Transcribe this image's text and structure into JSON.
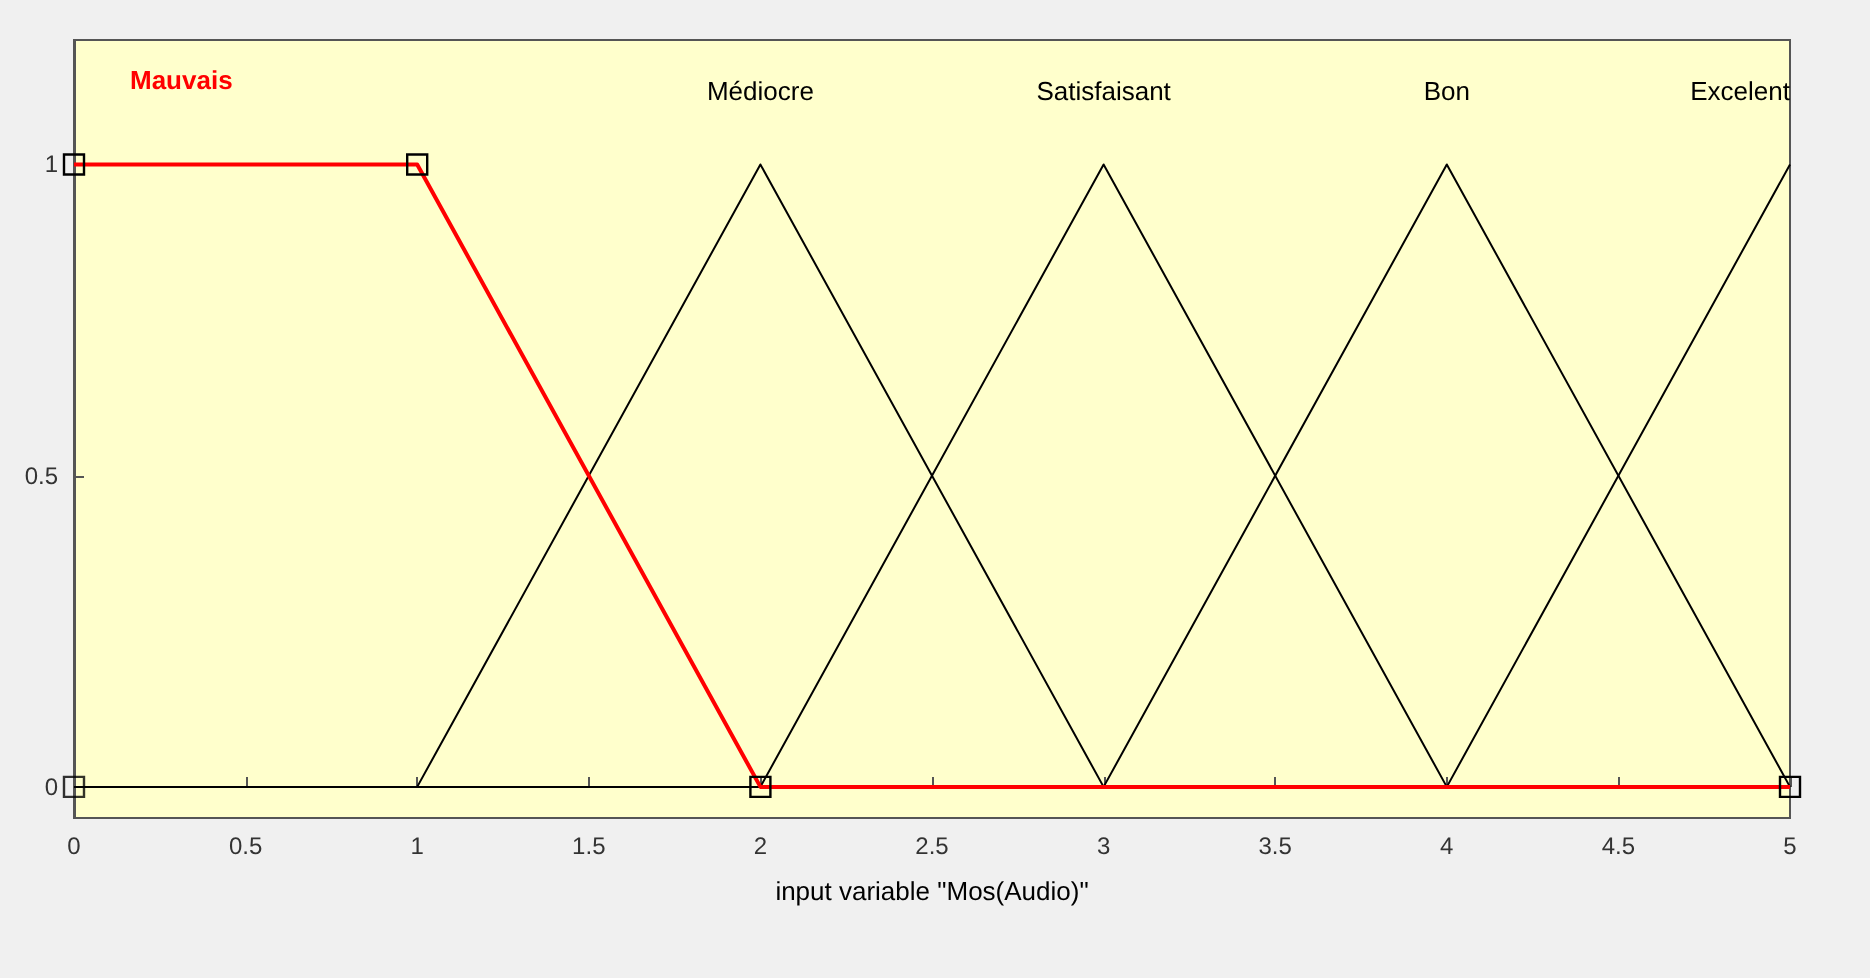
{
  "chart_data": {
    "type": "line",
    "xlabel": "input variable \"Mos(Audio)\"",
    "xlim": [
      0,
      5
    ],
    "xticks": [
      0,
      0.5,
      1,
      1.5,
      2,
      2.5,
      3,
      3.5,
      4,
      4.5,
      5
    ],
    "ylim": [
      -0.05,
      1.2
    ],
    "yticks": [
      0,
      0.5,
      1
    ],
    "grid": false,
    "legend": false,
    "line_style": "solid",
    "series": [
      {
        "name": "Mauvais",
        "color": "#ff0000",
        "marker": "square",
        "x": [
          0,
          1,
          2,
          5
        ],
        "values": [
          1,
          1,
          0,
          0
        ]
      },
      {
        "name": "Médiocre",
        "color": "#000000",
        "marker": "none",
        "x": [
          0,
          1,
          2,
          3,
          5
        ],
        "values": [
          0,
          0,
          1,
          0,
          0
        ]
      },
      {
        "name": "Satisfaisant",
        "color": "#000000",
        "marker": "none",
        "x": [
          0,
          2,
          3,
          4,
          5
        ],
        "values": [
          0,
          0,
          1,
          0,
          0
        ]
      },
      {
        "name": "Bon",
        "color": "#000000",
        "marker": "none",
        "x": [
          0,
          3,
          4,
          5
        ],
        "values": [
          0,
          0,
          1,
          0
        ]
      },
      {
        "name": "Excelent",
        "color": "#000000",
        "marker": "none",
        "x": [
          0,
          4,
          5
        ],
        "values": [
          0,
          0,
          1
        ]
      },
      {
        "type": "scatter",
        "color": "#000000",
        "marker": "square",
        "x": [
          0
        ],
        "values": [
          0
        ]
      }
    ]
  }
}
